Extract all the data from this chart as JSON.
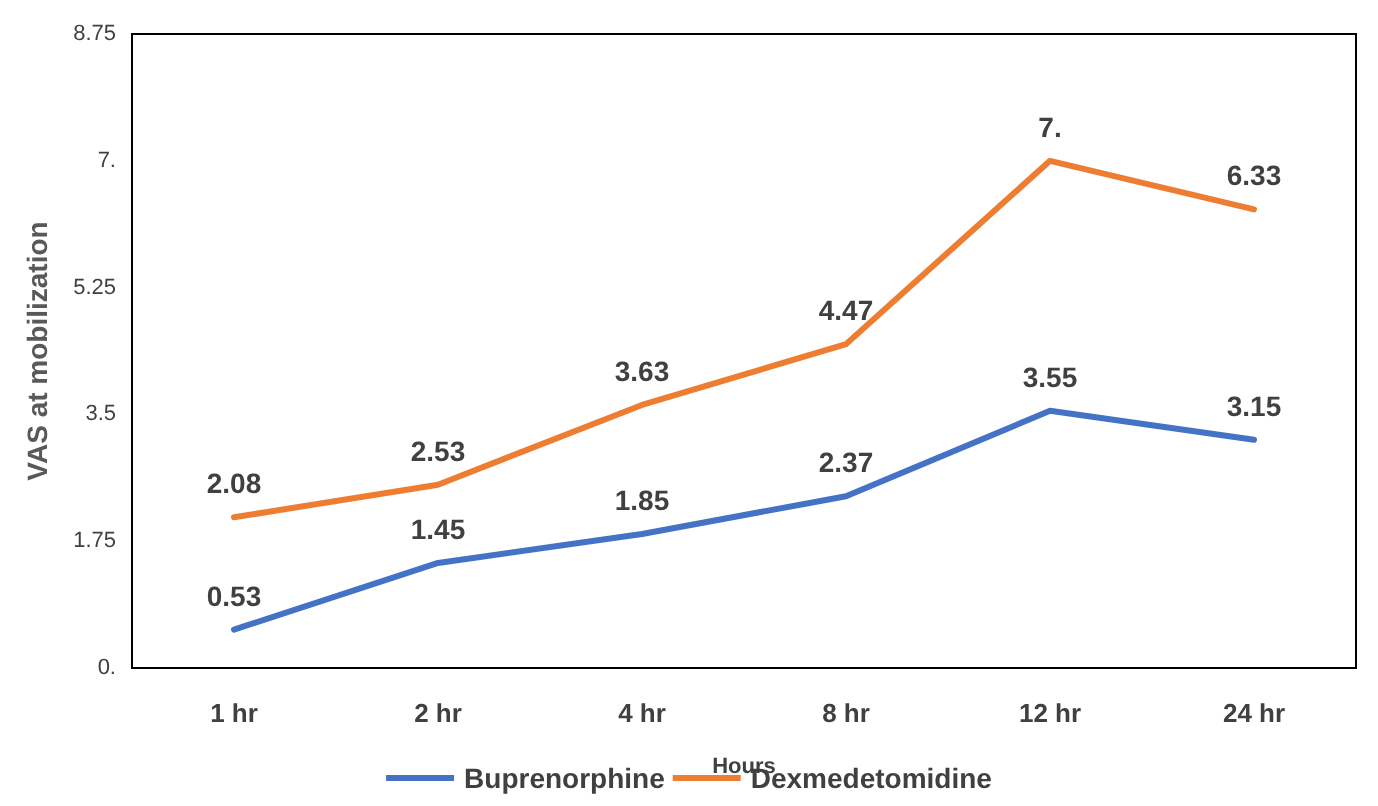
{
  "chart_data": {
    "type": "line",
    "xlabel": "Hours",
    "ylabel": "VAS at mobilization",
    "categories": [
      "1 hr",
      "2 hr",
      "4 hr",
      "8 hr",
      "12 hr",
      "24 hr"
    ],
    "series": [
      {
        "name": "Buprenorphine",
        "color": "#4472c4",
        "values": [
          0.53,
          1.45,
          1.85,
          2.37,
          3.55,
          3.15
        ],
        "value_labels": [
          "0.53",
          "1.45",
          "1.85",
          "2.37",
          "3.55",
          "3.15"
        ]
      },
      {
        "name": "Dexmedetomidine",
        "color": "#ed7d31",
        "values": [
          2.08,
          2.53,
          3.63,
          4.47,
          7,
          6.33
        ],
        "value_labels": [
          "2.08",
          "2.53",
          "3.63",
          "4.47",
          "7.",
          "6.33"
        ]
      }
    ],
    "ylim": [
      0,
      8.75
    ],
    "yticks": [
      {
        "value": 0,
        "label": "0."
      },
      1.75,
      3.5,
      5.25,
      {
        "value": 7,
        "label": "7."
      },
      8.75
    ],
    "grid": false,
    "legend": "bottom",
    "marker": "none",
    "line_style": "solid"
  }
}
